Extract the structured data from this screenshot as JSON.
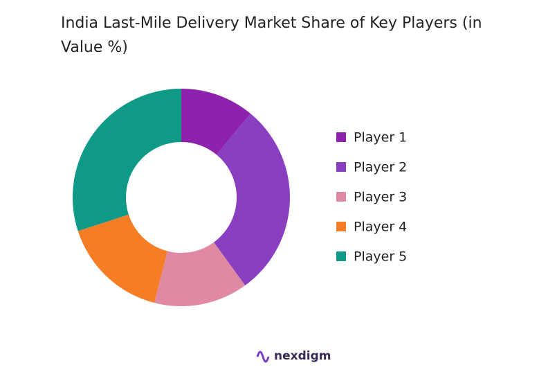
{
  "chart_data": {
    "type": "donut",
    "title": "India Last-Mile Delivery Market Share of Key Players (in Value %)",
    "categories": [
      "Player 1",
      "Player 2",
      "Player 3",
      "Player 4",
      "Player 5"
    ],
    "values": [
      11,
      29,
      14,
      16,
      30
    ],
    "colors": [
      "#8d22ad",
      "#8a3fc0",
      "#df8aa2",
      "#f47d26",
      "#0f9a87"
    ]
  },
  "brand": "nexdigm"
}
